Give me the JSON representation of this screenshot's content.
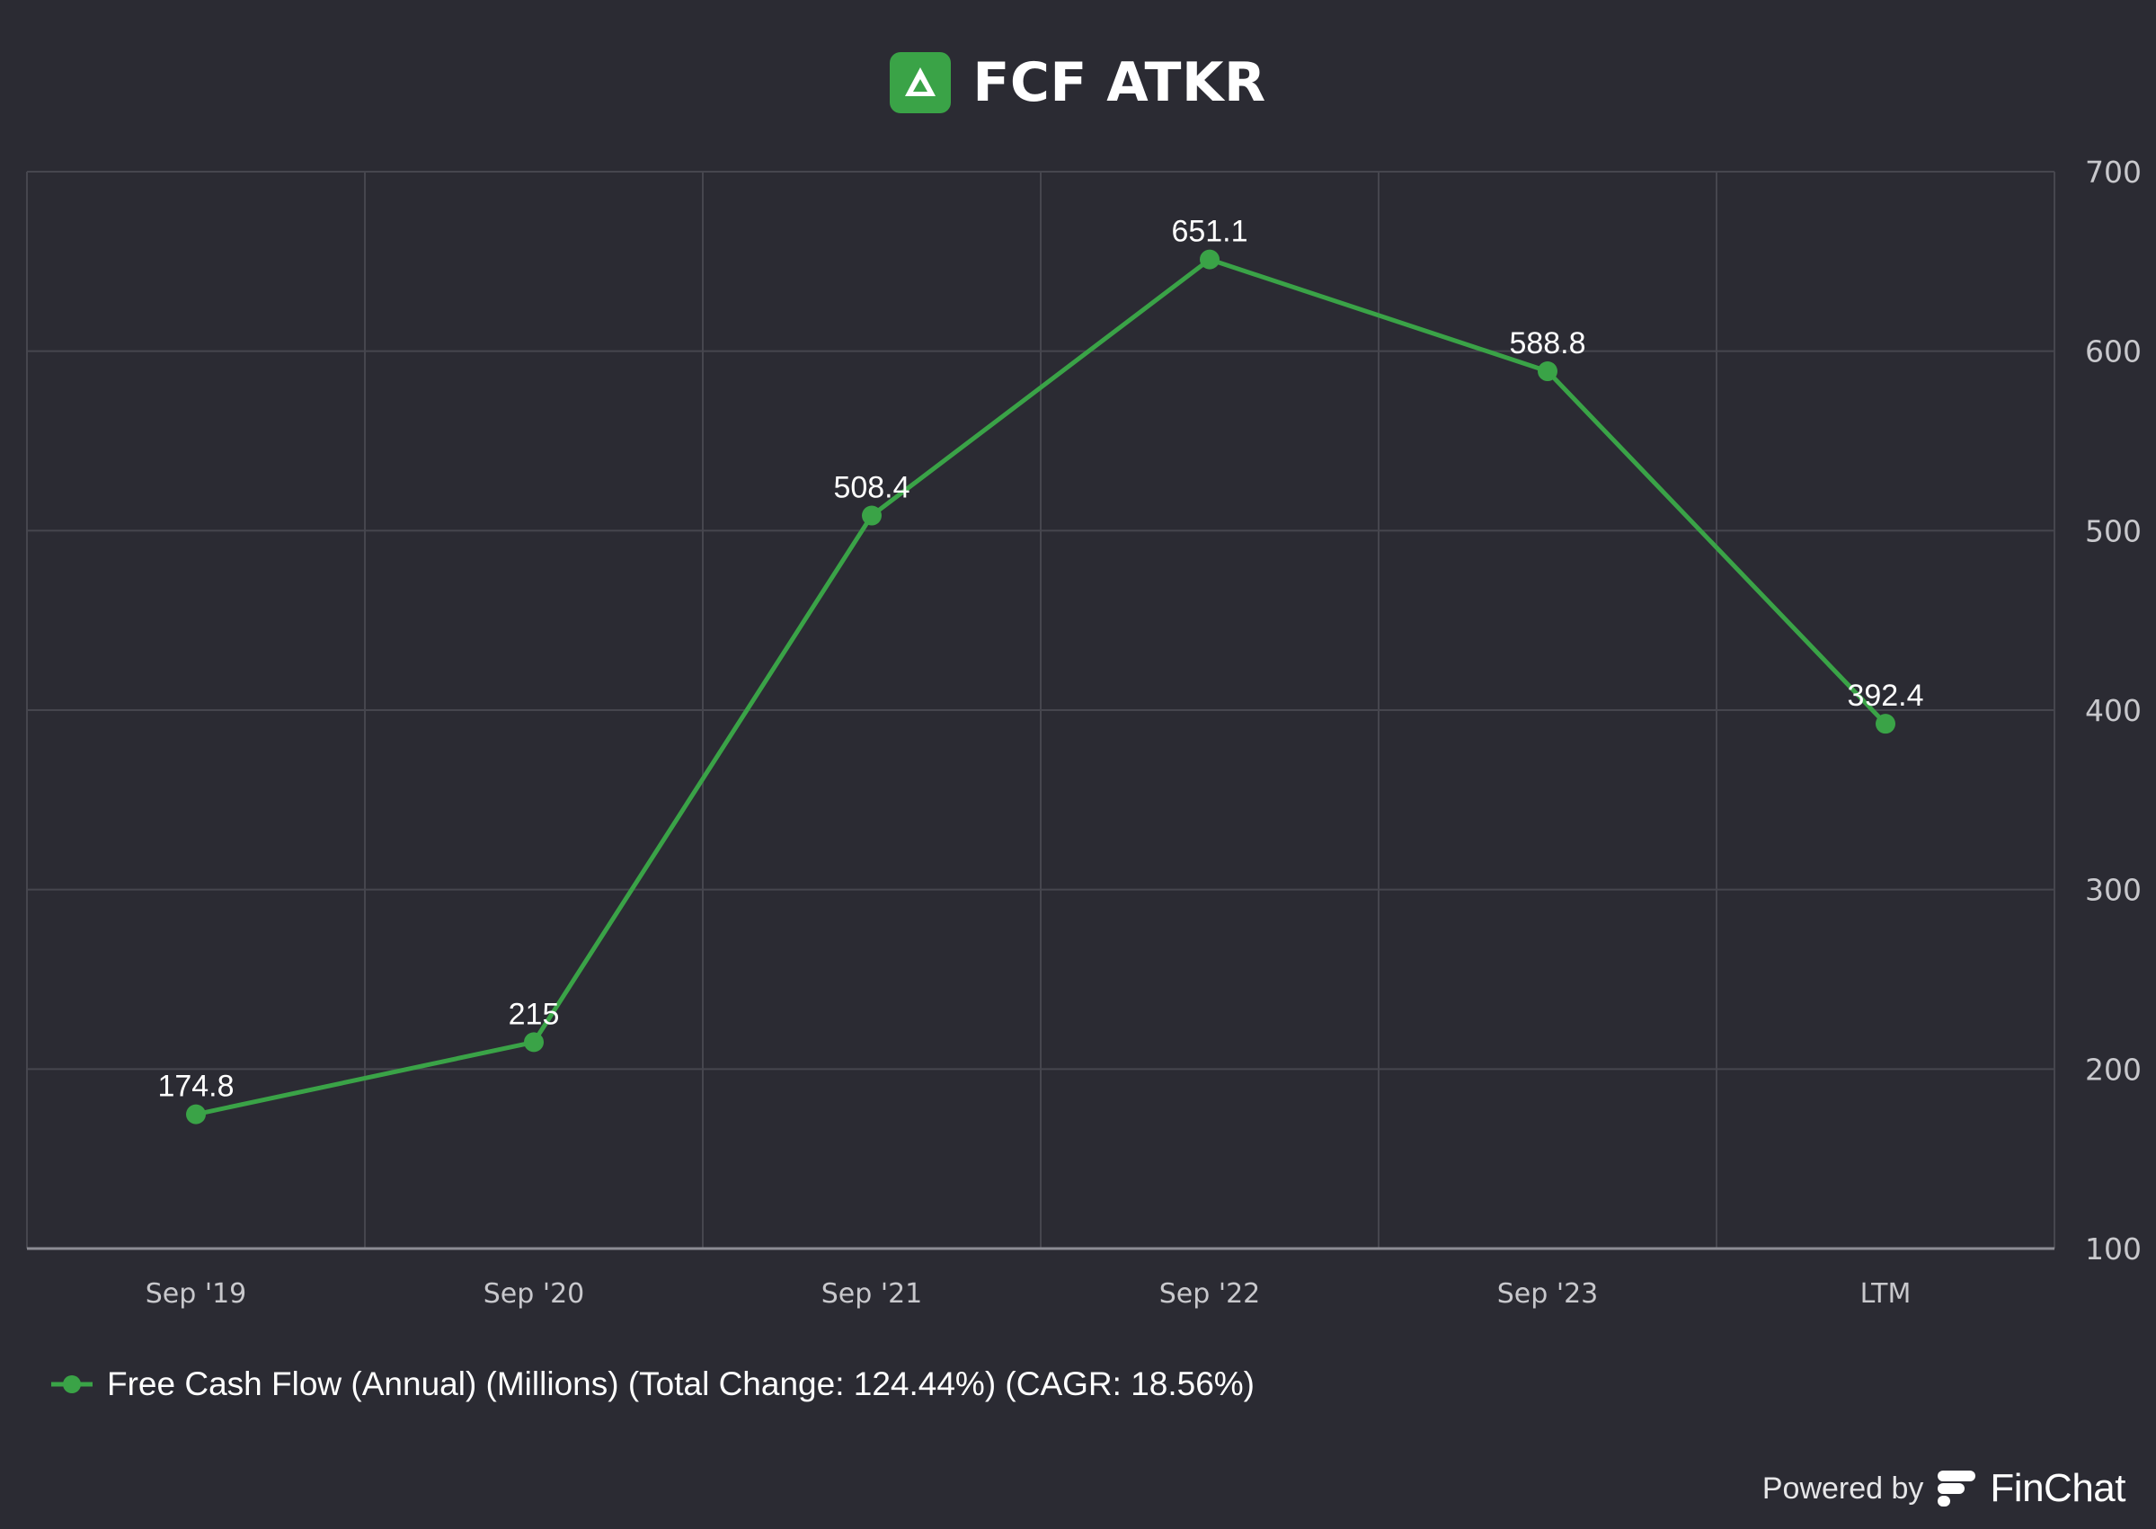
{
  "header": {
    "title": "FCF ATKR",
    "logo_icon": "atkr-logo-icon"
  },
  "chart_data": {
    "type": "line",
    "title": "FCF ATKR",
    "categories": [
      "Sep '19",
      "Sep '20",
      "Sep '21",
      "Sep '22",
      "Sep '23",
      "LTM"
    ],
    "series": [
      {
        "name": "Free Cash Flow (Annual) (Millions) (Total Change: 124.44%) (CAGR: 18.56%)",
        "values": [
          174.8,
          215,
          508.4,
          651.1,
          588.8,
          392.4
        ],
        "labels": [
          "174.8",
          "215",
          "508.4",
          "651.1",
          "588.8",
          "392.4"
        ],
        "color": "#3aa347"
      }
    ],
    "ylim": [
      100,
      700
    ],
    "yticks": [
      "100",
      "200",
      "300",
      "400",
      "500",
      "600",
      "700"
    ],
    "y_axis_side": "right",
    "grid": true,
    "legend_position": "bottom-left"
  },
  "footer": {
    "powered_label": "Powered by",
    "brand": "FinChat",
    "brand_icon": "finchat-logo-icon"
  },
  "colors": {
    "background": "#2b2b33",
    "grid": "#46464e",
    "axis": "#8c8c94",
    "series": "#3aa347",
    "text": "#ffffff",
    "tick": "#c8c8cc"
  }
}
